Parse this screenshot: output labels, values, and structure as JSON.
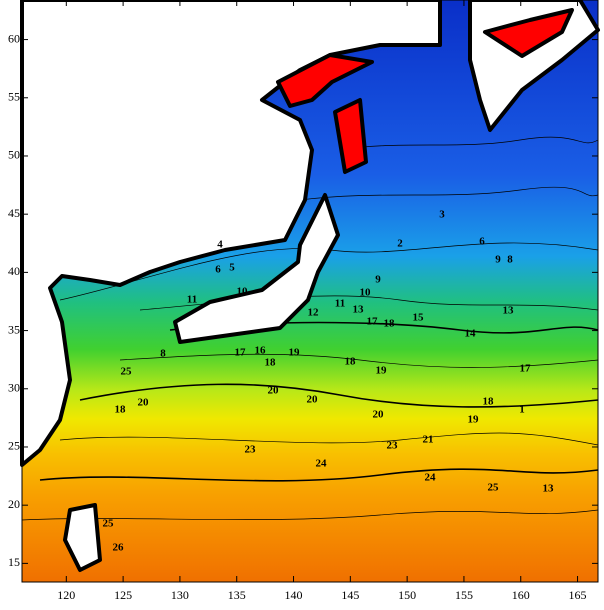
{
  "chart_data": {
    "type": "contour",
    "xlim": [
      116.1,
      166.8
    ],
    "ylim": [
      13.4,
      63.4
    ],
    "xticks": [
      120,
      125,
      130,
      135,
      140,
      145,
      150,
      155,
      160,
      165
    ],
    "yticks": [
      15,
      20,
      25,
      30,
      35,
      40,
      45,
      50,
      55,
      60
    ],
    "contour_labels": [
      4,
      6,
      5,
      10,
      11,
      10,
      9,
      12,
      11,
      13,
      17,
      18,
      15,
      14,
      13,
      9,
      8,
      6,
      3,
      2,
      17,
      16,
      18,
      19,
      20,
      18,
      19,
      17,
      20,
      20,
      19,
      18,
      1,
      21,
      23,
      23,
      24,
      25,
      24,
      13,
      18,
      20,
      25,
      8,
      25,
      26
    ]
  }
}
